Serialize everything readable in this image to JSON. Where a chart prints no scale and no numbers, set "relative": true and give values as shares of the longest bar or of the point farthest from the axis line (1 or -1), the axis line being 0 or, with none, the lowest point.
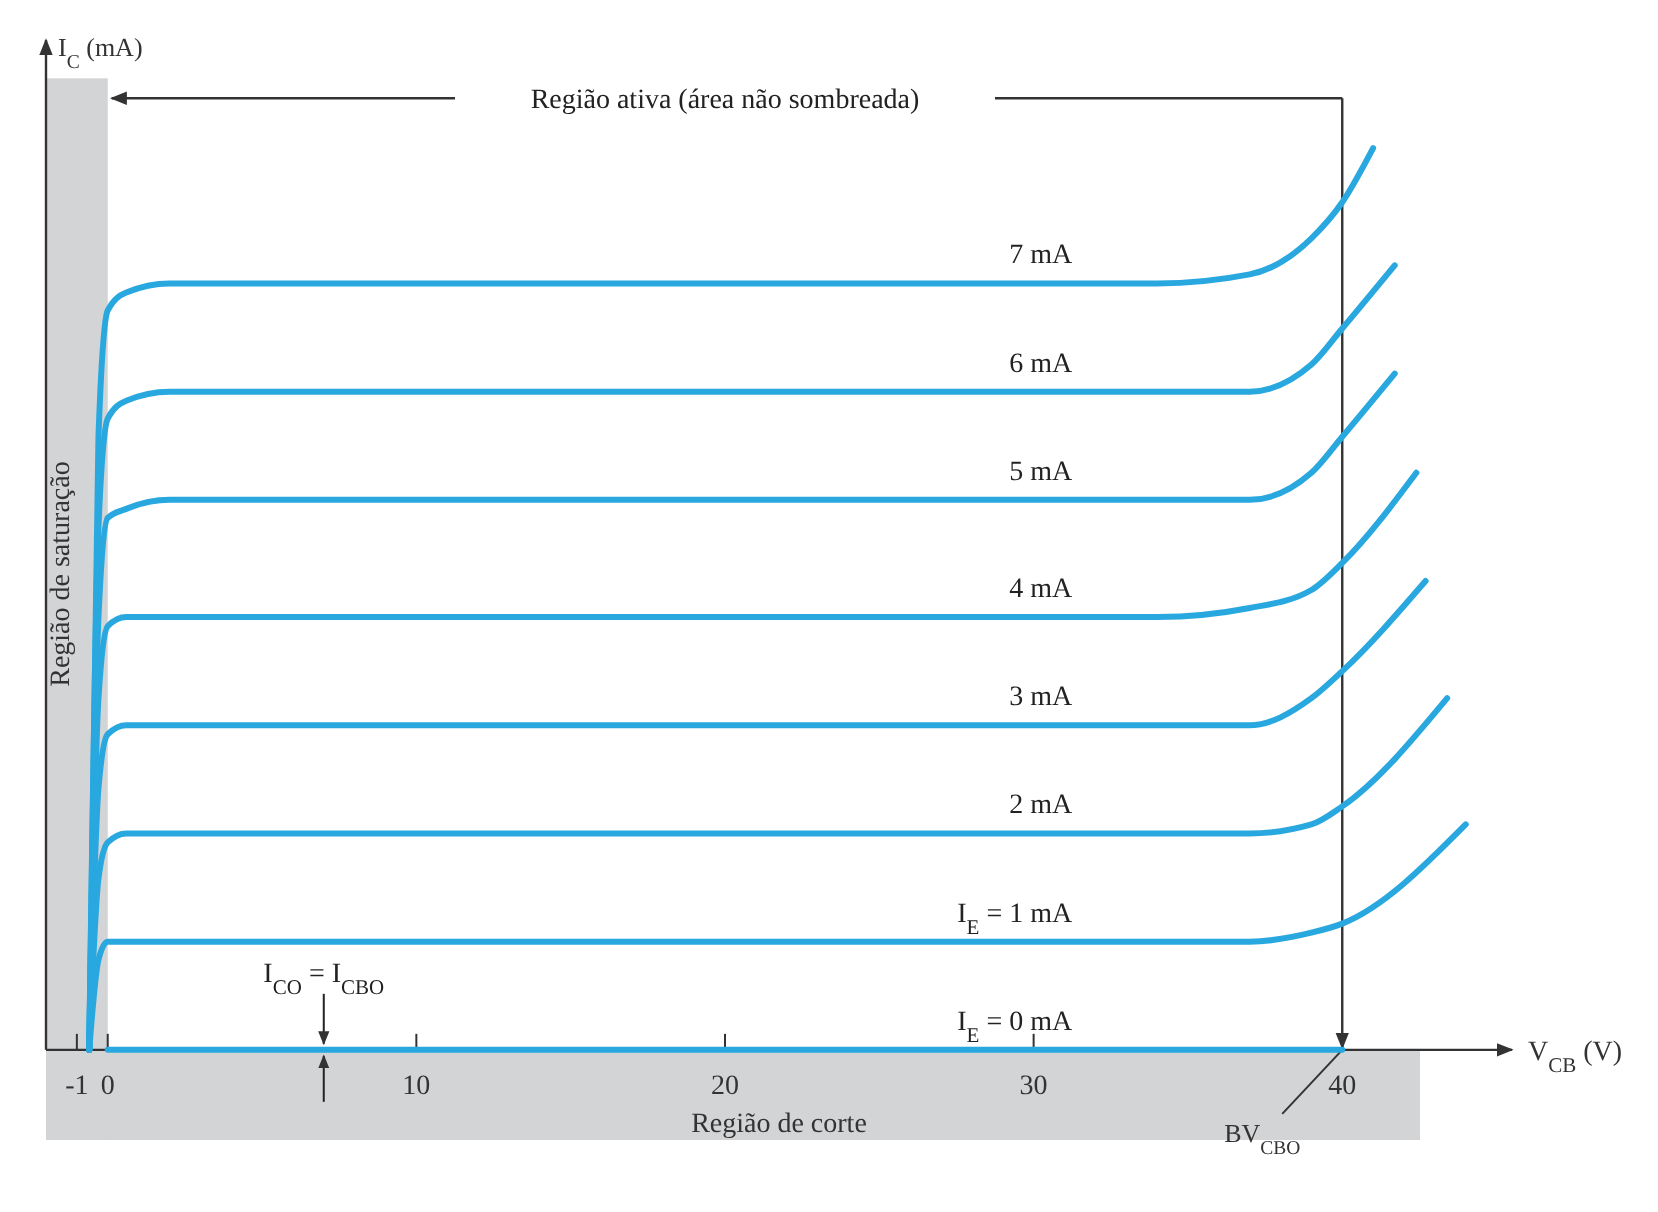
{
  "chart_data": {
    "type": "line",
    "xlabel": "V$_{CB}$ (V)",
    "ylabel": "I$_{C}$ (mA)",
    "relative": true,
    "xlim": [
      -2,
      45.5
    ],
    "xticks": [
      -1,
      0,
      10,
      20,
      30,
      40
    ],
    "line_style": "solid",
    "series": [
      {
        "name": "7 mA",
        "color": "#29a8e0",
        "x": [
          -0.6,
          -0.3,
          0,
          0.6,
          2,
          34,
          37,
          39,
          40,
          41
        ],
        "values": [
          0,
          0.68,
          0.82,
          0.84,
          0.85,
          0.85,
          0.86,
          0.9,
          0.94,
          1
        ]
      },
      {
        "name": "6 mA",
        "color": "#29a8e0",
        "x": [
          -0.6,
          -0.3,
          0,
          0.6,
          2,
          34,
          37,
          39,
          40,
          41.7
        ],
        "values": [
          0,
          0.58,
          0.7,
          0.72,
          0.73,
          0.73,
          0.73,
          0.76,
          0.8,
          0.87
        ]
      },
      {
        "name": "5 mA",
        "color": "#29a8e0",
        "x": [
          -0.6,
          -0.3,
          0,
          0.6,
          2,
          34,
          37,
          39,
          40,
          41.7
        ],
        "values": [
          0,
          0.48,
          0.59,
          0.6,
          0.61,
          0.61,
          0.61,
          0.64,
          0.68,
          0.75
        ]
      },
      {
        "name": "4 mA",
        "color": "#29a8e0",
        "x": [
          -0.6,
          -0.3,
          0,
          0.6,
          2,
          34,
          37,
          39,
          40,
          42.4
        ],
        "values": [
          0,
          0.39,
          0.47,
          0.48,
          0.48,
          0.48,
          0.49,
          0.51,
          0.54,
          0.64
        ]
      },
      {
        "name": "3 mA",
        "color": "#29a8e0",
        "x": [
          -0.6,
          -0.3,
          0,
          0.6,
          2,
          34,
          37,
          39,
          40,
          42.7
        ],
        "values": [
          0,
          0.29,
          0.35,
          0.36,
          0.36,
          0.36,
          0.36,
          0.39,
          0.42,
          0.52
        ]
      },
      {
        "name": "2 mA",
        "color": "#29a8e0",
        "x": [
          -0.6,
          -0.3,
          0,
          0.6,
          2,
          34,
          37,
          39,
          40,
          43.4
        ],
        "values": [
          0,
          0.19,
          0.23,
          0.24,
          0.24,
          0.24,
          0.24,
          0.25,
          0.27,
          0.39
        ]
      },
      {
        "name": "I$_{E}$ = 1 mA",
        "color": "#29a8e0",
        "x": [
          -0.6,
          -0.3,
          0,
          0.6,
          2,
          34,
          37,
          39,
          40,
          44
        ],
        "values": [
          0,
          0.1,
          0.12,
          0.12,
          0.12,
          0.12,
          0.12,
          0.13,
          0.14,
          0.25
        ]
      },
      {
        "name": "I$_{E}$ = 0 mA",
        "color": "#29a8e0",
        "x": [
          0,
          40
        ],
        "values": [
          0,
          0
        ]
      }
    ],
    "bands": [
      {
        "axis": "x",
        "from": -2,
        "to": 0,
        "label": "Região de saturação",
        "color": "#d3d4d6"
      }
    ],
    "ref_lines": [
      {
        "axis": "x",
        "value": 40,
        "label": "BV$_{CBO}$",
        "color": "#333333"
      }
    ],
    "annotations": [
      "Região ativa (área não sombreada)",
      {
        "text": "I$_{CO}$ = I$_{CBO}$",
        "x": 7,
        "y": 0
      },
      "Região de corte"
    ]
  }
}
